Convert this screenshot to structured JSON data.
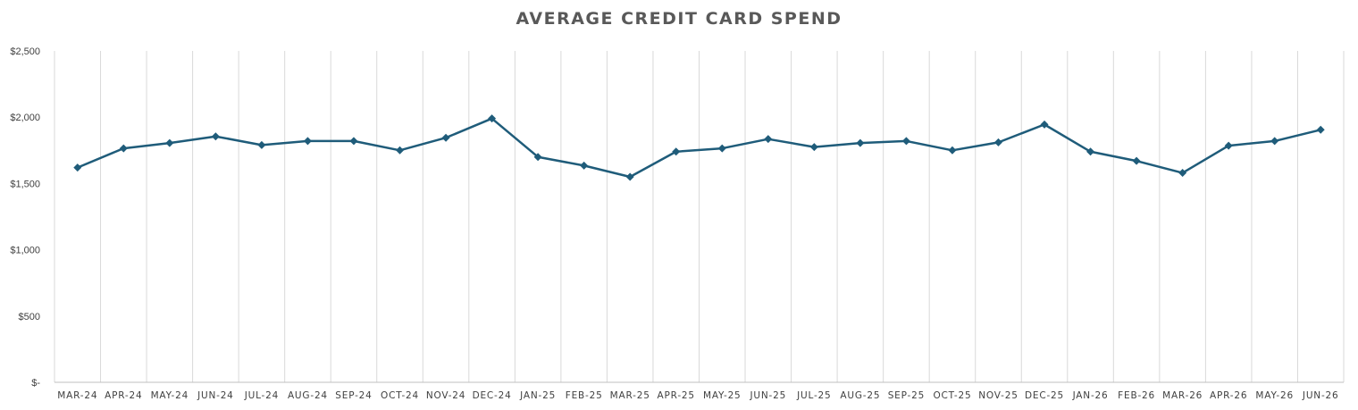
{
  "chart_data": {
    "type": "line",
    "title": "AVERAGE CREDIT CARD SPEND",
    "xlabel": "",
    "ylabel": "",
    "ylim": [
      0,
      2500
    ],
    "yticks": [
      {
        "value": 0,
        "label": "$-"
      },
      {
        "value": 500,
        "label": "$500"
      },
      {
        "value": 1000,
        "label": "$1,000"
      },
      {
        "value": 1500,
        "label": "$1,500"
      },
      {
        "value": 2000,
        "label": "$2,000"
      },
      {
        "value": 2500,
        "label": "$2,500"
      }
    ],
    "grid": "vertical",
    "legend": "none",
    "categories": [
      "MAR-24",
      "APR-24",
      "MAY-24",
      "JUN-24",
      "JUL-24",
      "AUG-24",
      "SEP-24",
      "OCT-24",
      "NOV-24",
      "DEC-24",
      "JAN-25",
      "FEB-25",
      "MAR-25",
      "APR-25",
      "MAY-25",
      "JUN-25",
      "JUL-25",
      "AUG-25",
      "SEP-25",
      "OCT-25",
      "NOV-25",
      "DEC-25",
      "JAN-26",
      "FEB-26",
      "MAR-26",
      "APR-26",
      "MAY-26",
      "JUN-26"
    ],
    "series": [
      {
        "color": "#1f5c7a",
        "marker": "diamond",
        "values": [
          1620,
          1765,
          1805,
          1855,
          1790,
          1820,
          1820,
          1750,
          1845,
          1990,
          1700,
          1635,
          1550,
          1740,
          1765,
          1835,
          1775,
          1805,
          1820,
          1750,
          1810,
          1945,
          1740,
          1670,
          1580,
          1785,
          1820,
          1905
        ]
      }
    ]
  }
}
